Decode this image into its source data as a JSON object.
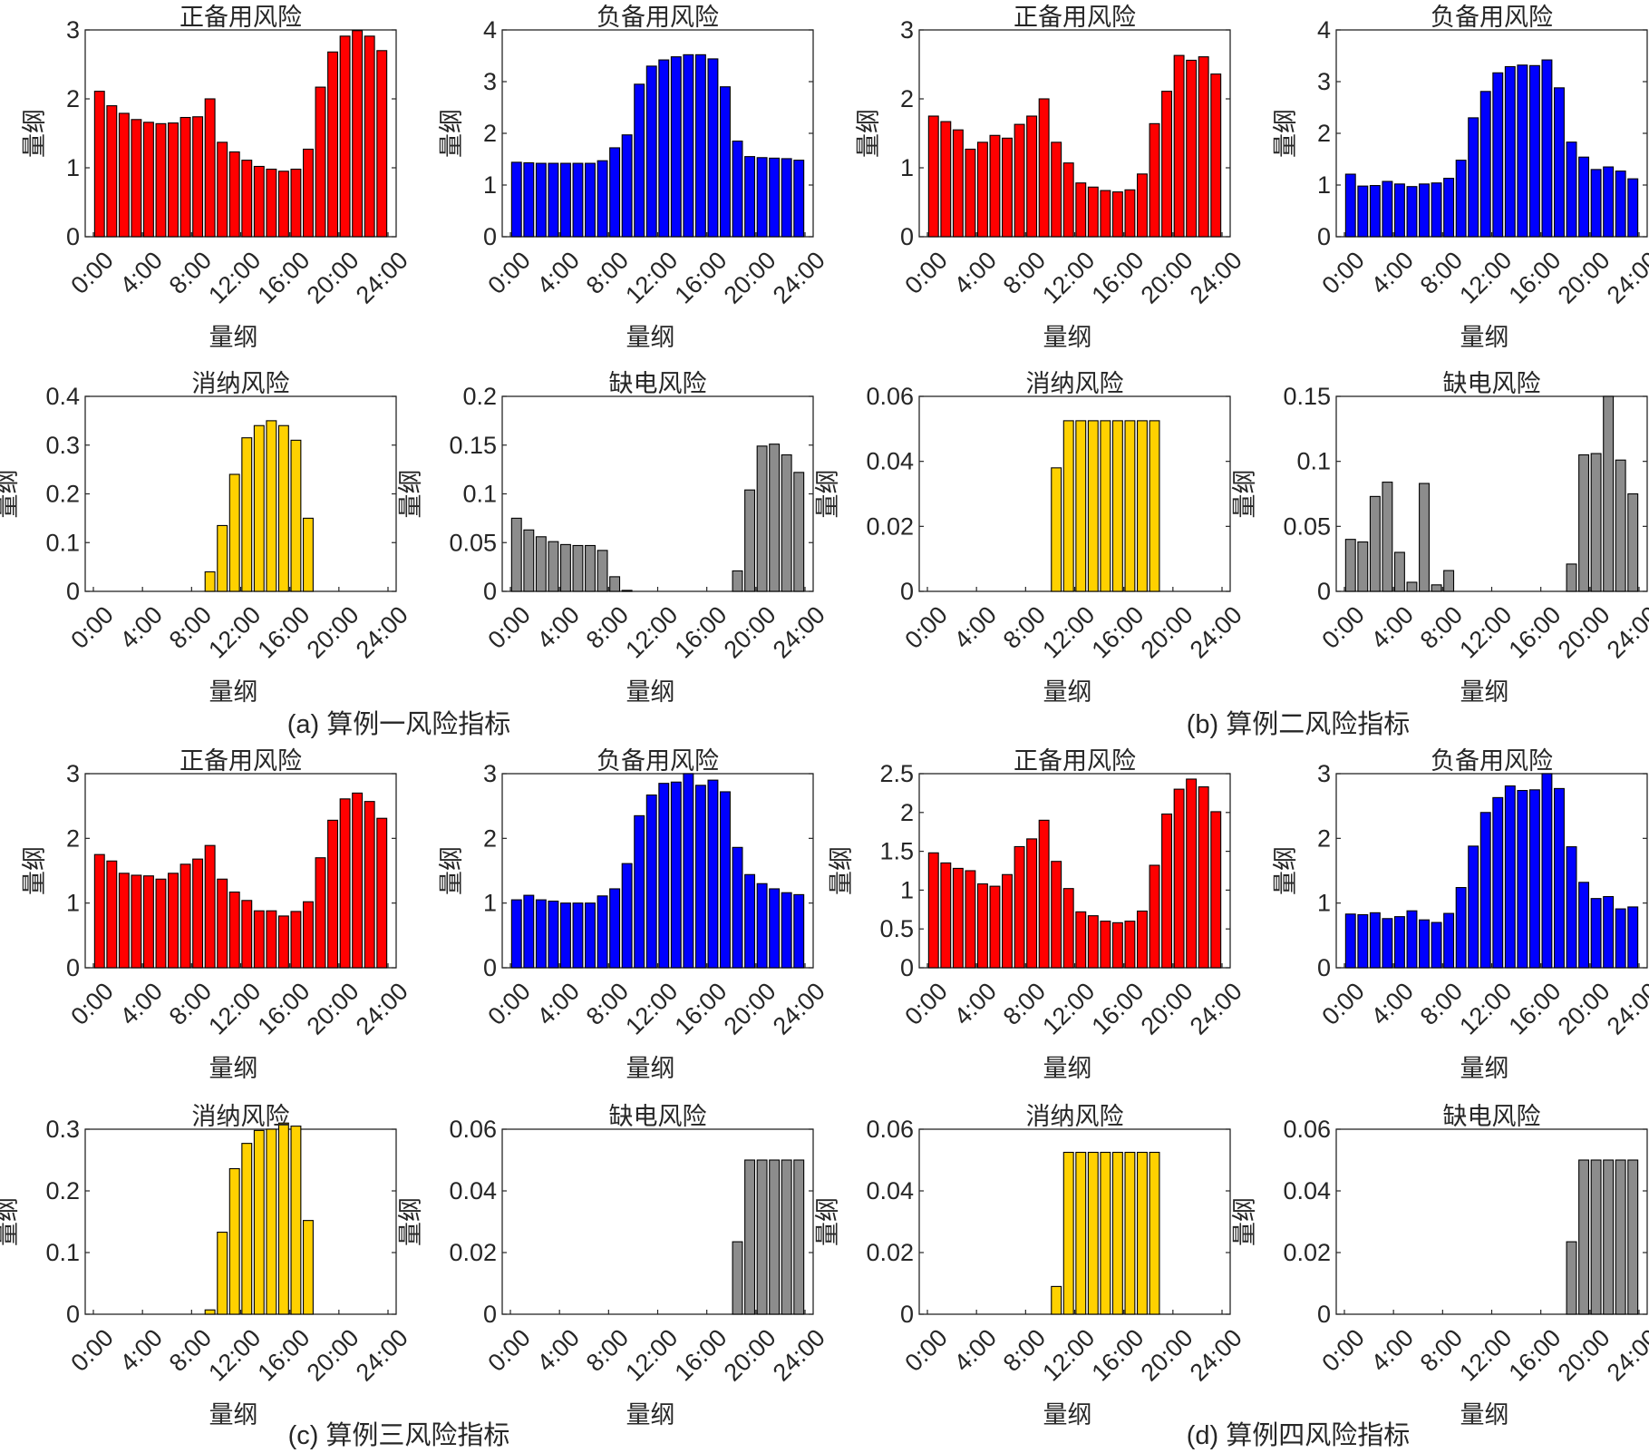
{
  "captions": [
    "(a)  算例一风险指标",
    "(b)  算例二风险指标",
    "(c)  算例三风险指标",
    "(d)  算例四风险指标"
  ],
  "colors": {
    "pos_reserve": "#ff0000",
    "neg_reserve": "#0000ff",
    "curtail": "#ffd100",
    "shortage": "#8c8c8c"
  },
  "x_tick_labels": [
    "0:00",
    "4:00",
    "8:00",
    "12:00",
    "16:00",
    "20:00",
    "24:00"
  ],
  "chart_data": [
    {
      "type": "bar",
      "group": 0,
      "title": "正备用风险",
      "xlabel": "量纲",
      "ylabel": "量纲",
      "ylim": [
        0,
        3
      ],
      "yticks": [
        "0",
        "1",
        "2",
        "3"
      ],
      "color": "pos_reserve",
      "values": [
        2.11,
        1.9,
        1.79,
        1.7,
        1.66,
        1.64,
        1.65,
        1.73,
        1.74,
        2.0,
        1.37,
        1.23,
        1.11,
        1.02,
        0.98,
        0.95,
        0.98,
        1.27,
        2.17,
        2.68,
        2.91,
        2.99,
        2.91,
        2.7
      ]
    },
    {
      "type": "bar",
      "group": 0,
      "title": "负备用风险",
      "xlabel": "量纲",
      "ylabel": "量纲",
      "ylim": [
        0,
        4
      ],
      "yticks": [
        "0",
        "1",
        "2",
        "3",
        "4"
      ],
      "color": "neg_reserve",
      "values": [
        1.44,
        1.43,
        1.42,
        1.42,
        1.42,
        1.42,
        1.42,
        1.47,
        1.72,
        1.97,
        2.95,
        3.3,
        3.42,
        3.48,
        3.52,
        3.52,
        3.44,
        2.9,
        1.85,
        1.55,
        1.53,
        1.52,
        1.51,
        1.48
      ]
    },
    {
      "type": "bar",
      "group": 0,
      "title": "消纳风险",
      "xlabel": "量纲",
      "ylabel": "量纲",
      "ylim": [
        0,
        0.4
      ],
      "yticks": [
        "0",
        "0.1",
        "0.2",
        "0.3",
        "0.4"
      ],
      "color": "curtail",
      "values": [
        0,
        0,
        0,
        0,
        0,
        0,
        0,
        0,
        0,
        0.04,
        0.135,
        0.24,
        0.315,
        0.34,
        0.35,
        0.34,
        0.31,
        0.15,
        0,
        0,
        0,
        0,
        0,
        0
      ]
    },
    {
      "type": "bar",
      "group": 0,
      "title": "缺电风险",
      "xlabel": "量纲",
      "ylabel": "量纲",
      "ylim": [
        0,
        0.2
      ],
      "yticks": [
        "0",
        "0.05",
        "0.1",
        "0.15",
        "0.2"
      ],
      "color": "shortage",
      "values": [
        0.075,
        0.063,
        0.056,
        0.051,
        0.048,
        0.047,
        0.047,
        0.042,
        0.015,
        0.001,
        0,
        0,
        0,
        0,
        0,
        0,
        0,
        0,
        0.021,
        0.104,
        0.149,
        0.151,
        0.14,
        0.122
      ]
    },
    {
      "type": "bar",
      "group": 1,
      "title": "正备用风险",
      "xlabel": "量纲",
      "ylabel": "量纲",
      "ylim": [
        0,
        3
      ],
      "yticks": [
        "0",
        "1",
        "2",
        "3"
      ],
      "color": "pos_reserve",
      "values": [
        1.75,
        1.67,
        1.55,
        1.27,
        1.37,
        1.47,
        1.43,
        1.63,
        1.75,
        2.0,
        1.37,
        1.07,
        0.78,
        0.72,
        0.67,
        0.65,
        0.68,
        0.91,
        1.64,
        2.11,
        2.63,
        2.56,
        2.61,
        2.36
      ]
    },
    {
      "type": "bar",
      "group": 1,
      "title": "负备用风险",
      "xlabel": "量纲",
      "ylabel": "量纲",
      "ylim": [
        0,
        4
      ],
      "yticks": [
        "0",
        "1",
        "2",
        "3",
        "4"
      ],
      "color": "neg_reserve",
      "values": [
        1.21,
        0.98,
        0.99,
        1.07,
        1.02,
        0.97,
        1.02,
        1.04,
        1.13,
        1.48,
        2.3,
        2.81,
        3.17,
        3.29,
        3.32,
        3.31,
        3.42,
        2.88,
        1.83,
        1.54,
        1.3,
        1.35,
        1.27,
        1.12
      ]
    },
    {
      "type": "bar",
      "group": 1,
      "title": "消纳风险",
      "xlabel": "量纲",
      "ylabel": "量纲",
      "ylim": [
        0,
        0.06
      ],
      "yticks": [
        "0",
        "0.02",
        "0.04",
        "0.06"
      ],
      "color": "curtail",
      "values": [
        0,
        0,
        0,
        0,
        0,
        0,
        0,
        0,
        0,
        0,
        0.038,
        0.0525,
        0.0525,
        0.0525,
        0.0525,
        0.0525,
        0.0525,
        0.0525,
        0.0525,
        0,
        0,
        0,
        0,
        0
      ]
    },
    {
      "type": "bar",
      "group": 1,
      "title": "缺电风险",
      "xlabel": "量纲",
      "ylabel": "量纲",
      "ylim": [
        0,
        0.15
      ],
      "yticks": [
        "0",
        "0.05",
        "0.1",
        "0.15"
      ],
      "color": "shortage",
      "values": [
        0.04,
        0.038,
        0.073,
        0.084,
        0.03,
        0.007,
        0.083,
        0.005,
        0.016,
        0,
        0,
        0,
        0,
        0,
        0,
        0,
        0,
        0,
        0.021,
        0.105,
        0.106,
        0.15,
        0.101,
        0.075
      ]
    },
    {
      "type": "bar",
      "group": 2,
      "title": "正备用风险",
      "xlabel": "量纲",
      "ylabel": "量纲",
      "ylim": [
        0,
        3
      ],
      "yticks": [
        "0",
        "1",
        "2",
        "3"
      ],
      "color": "pos_reserve",
      "values": [
        1.75,
        1.65,
        1.46,
        1.43,
        1.42,
        1.37,
        1.46,
        1.6,
        1.68,
        1.89,
        1.37,
        1.17,
        1.04,
        0.88,
        0.88,
        0.8,
        0.87,
        1.02,
        1.7,
        2.28,
        2.61,
        2.7,
        2.57,
        2.31
      ]
    },
    {
      "type": "bar",
      "group": 2,
      "title": "负备用风险",
      "xlabel": "量纲",
      "ylabel": "量纲",
      "ylim": [
        0,
        3
      ],
      "yticks": [
        "0",
        "1",
        "2",
        "3"
      ],
      "color": "neg_reserve",
      "values": [
        1.05,
        1.12,
        1.05,
        1.03,
        1.0,
        1.0,
        1.0,
        1.11,
        1.22,
        1.61,
        2.35,
        2.67,
        2.85,
        2.87,
        3.0,
        2.82,
        2.9,
        2.72,
        1.86,
        1.44,
        1.3,
        1.22,
        1.16,
        1.13
      ]
    },
    {
      "type": "bar",
      "group": 2,
      "title": "消纳风险",
      "xlabel": "量纲",
      "ylabel": "量纲",
      "ylim": [
        0,
        0.3
      ],
      "yticks": [
        "0",
        "0.1",
        "0.2",
        "0.3"
      ],
      "color": "curtail",
      "values": [
        0,
        0,
        0,
        0,
        0,
        0,
        0,
        0,
        0,
        0.007,
        0.133,
        0.236,
        0.277,
        0.298,
        0.3,
        0.31,
        0.305,
        0.152,
        0,
        0,
        0,
        0,
        0,
        0
      ]
    },
    {
      "type": "bar",
      "group": 2,
      "title": "缺电风险",
      "xlabel": "量纲",
      "ylabel": "量纲",
      "ylim": [
        0,
        0.06
      ],
      "yticks": [
        "0",
        "0.02",
        "0.04",
        "0.06"
      ],
      "color": "shortage",
      "values": [
        0,
        0,
        0,
        0,
        0,
        0,
        0,
        0,
        0,
        0,
        0,
        0,
        0,
        0,
        0,
        0,
        0,
        0,
        0.0235,
        0.05,
        0.05,
        0.05,
        0.05,
        0.05
      ]
    },
    {
      "type": "bar",
      "group": 3,
      "title": "正备用风险",
      "xlabel": "量纲",
      "ylabel": "量纲",
      "ylim": [
        0,
        2.5
      ],
      "yticks": [
        "0",
        "0.5",
        "1",
        "1.5",
        "2",
        "2.5"
      ],
      "color": "pos_reserve",
      "values": [
        1.48,
        1.35,
        1.28,
        1.25,
        1.08,
        1.05,
        1.2,
        1.56,
        1.66,
        1.9,
        1.37,
        1.02,
        0.72,
        0.67,
        0.6,
        0.58,
        0.6,
        0.73,
        1.32,
        1.98,
        2.3,
        2.43,
        2.33,
        2.01
      ]
    },
    {
      "type": "bar",
      "group": 3,
      "title": "负备用风险",
      "xlabel": "量纲",
      "ylabel": "量纲",
      "ylim": [
        0,
        3
      ],
      "yticks": [
        "0",
        "1",
        "2",
        "3"
      ],
      "color": "neg_reserve",
      "values": [
        0.83,
        0.82,
        0.85,
        0.76,
        0.79,
        0.88,
        0.74,
        0.7,
        0.84,
        1.24,
        1.88,
        2.4,
        2.63,
        2.81,
        2.74,
        2.75,
        3.0,
        2.77,
        1.87,
        1.32,
        1.07,
        1.1,
        0.91,
        0.94
      ]
    },
    {
      "type": "bar",
      "group": 3,
      "title": "消纳风险",
      "xlabel": "量纲",
      "ylabel": "量纲",
      "ylim": [
        0,
        0.06
      ],
      "yticks": [
        "0",
        "0.02",
        "0.04",
        "0.06"
      ],
      "color": "curtail",
      "values": [
        0,
        0,
        0,
        0,
        0,
        0,
        0,
        0,
        0,
        0,
        0.009,
        0.0525,
        0.0525,
        0.0525,
        0.0525,
        0.0525,
        0.0525,
        0.0525,
        0.0525,
        0,
        0,
        0,
        0,
        0
      ]
    },
    {
      "type": "bar",
      "group": 3,
      "title": "缺电风险",
      "xlabel": "量纲",
      "ylabel": "量纲",
      "ylim": [
        0,
        0.06
      ],
      "yticks": [
        "0",
        "0.02",
        "0.04",
        "0.06"
      ],
      "color": "shortage",
      "values": [
        0,
        0,
        0,
        0,
        0,
        0,
        0,
        0,
        0,
        0,
        0,
        0,
        0,
        0,
        0,
        0,
        0,
        0,
        0.0235,
        0.05,
        0.05,
        0.05,
        0.05,
        0.05
      ]
    }
  ]
}
